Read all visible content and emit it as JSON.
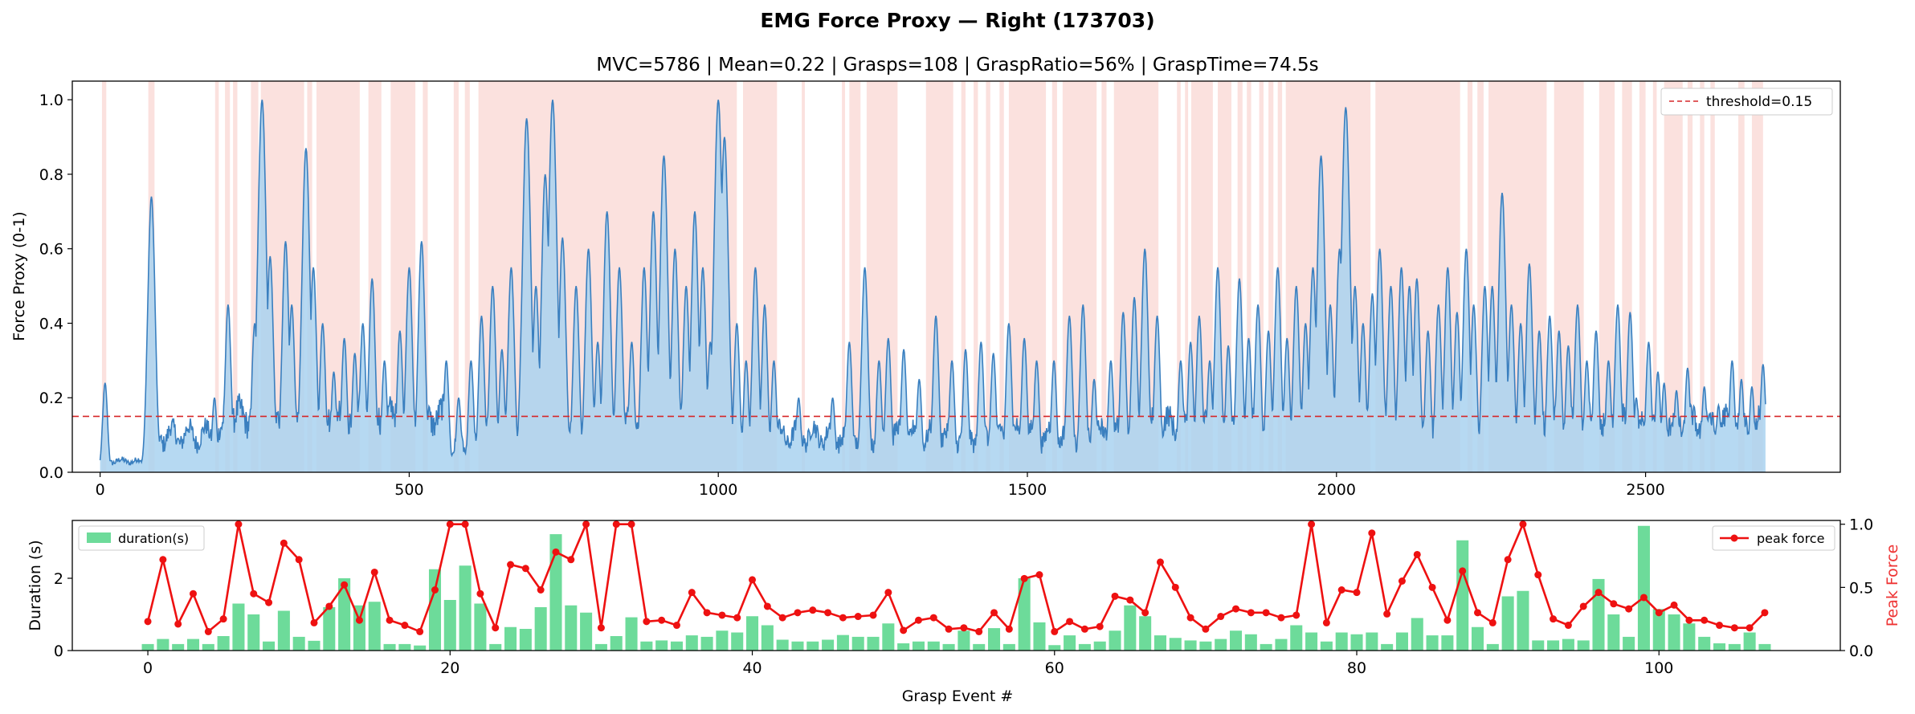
{
  "figure": {
    "suptitle": "EMG Force Proxy — Right (173703)"
  },
  "colors": {
    "signal_line": "#3a7fbf",
    "signal_fill": "#a9d2f0",
    "grasp_span": "#f6b8b0",
    "threshold": "#d62728",
    "bars": "#6ddb9a",
    "peak": "#ee1111",
    "peak_axis_label": "#ee3333"
  },
  "chart_data": [
    {
      "type": "area",
      "title": "MVC=5786 | Mean=0.22 | Grasps=108 | GraspRatio=56% | GraspTime=74.5s",
      "xlabel": "",
      "ylabel": "Force Proxy (0-1)",
      "xlim": [
        -45,
        2815
      ],
      "ylim": [
        0,
        1.05
      ],
      "xticks": [
        0,
        500,
        1000,
        1500,
        2000,
        2500
      ],
      "yticks": [
        0.0,
        0.2,
        0.4,
        0.6,
        0.8,
        1.0
      ],
      "threshold": {
        "value": 0.15,
        "label": "threshold=0.15"
      },
      "legend": "top-right",
      "grid": false,
      "n_samples": 2695,
      "baseline_segments": [
        {
          "x0": 0,
          "x1": 80,
          "level": 0.03
        },
        {
          "x0": 80,
          "x1": 200,
          "level": 0.1
        },
        {
          "x0": 200,
          "x1": 560,
          "level": 0.15
        },
        {
          "x0": 560,
          "x1": 620,
          "level": 0.07
        },
        {
          "x0": 620,
          "x1": 1000,
          "level": 0.13
        },
        {
          "x0": 1000,
          "x1": 1200,
          "level": 0.1
        },
        {
          "x0": 1200,
          "x1": 1500,
          "level": 0.1
        },
        {
          "x0": 1500,
          "x1": 1700,
          "level": 0.1
        },
        {
          "x0": 1700,
          "x1": 2695,
          "level": 0.13
        }
      ],
      "peaks": [
        [
          8,
          0.24
        ],
        [
          83,
          0.74
        ],
        [
          185,
          0.2
        ],
        [
          207,
          0.45
        ],
        [
          250,
          0.4
        ],
        [
          262,
          1.0
        ],
        [
          275,
          0.58
        ],
        [
          300,
          0.62
        ],
        [
          310,
          0.45
        ],
        [
          333,
          0.87
        ],
        [
          345,
          0.55
        ],
        [
          360,
          0.4
        ],
        [
          378,
          0.27
        ],
        [
          395,
          0.36
        ],
        [
          412,
          0.32
        ],
        [
          425,
          0.4
        ],
        [
          440,
          0.52
        ],
        [
          460,
          0.3
        ],
        [
          485,
          0.38
        ],
        [
          500,
          0.55
        ],
        [
          520,
          0.62
        ],
        [
          560,
          0.3
        ],
        [
          580,
          0.2
        ],
        [
          600,
          0.3
        ],
        [
          617,
          0.42
        ],
        [
          635,
          0.5
        ],
        [
          650,
          0.33
        ],
        [
          665,
          0.55
        ],
        [
          690,
          0.95
        ],
        [
          705,
          0.5
        ],
        [
          720,
          0.8
        ],
        [
          732,
          1.0
        ],
        [
          748,
          0.63
        ],
        [
          770,
          0.5
        ],
        [
          790,
          0.6
        ],
        [
          805,
          0.35
        ],
        [
          820,
          0.7
        ],
        [
          840,
          0.55
        ],
        [
          860,
          0.35
        ],
        [
          880,
          0.55
        ],
        [
          895,
          0.7
        ],
        [
          912,
          0.85
        ],
        [
          930,
          0.6
        ],
        [
          948,
          0.5
        ],
        [
          962,
          0.7
        ],
        [
          975,
          0.55
        ],
        [
          987,
          0.35
        ],
        [
          1000,
          1.0
        ],
        [
          1010,
          0.9
        ],
        [
          1030,
          0.4
        ],
        [
          1045,
          0.3
        ],
        [
          1060,
          0.55
        ],
        [
          1075,
          0.45
        ],
        [
          1090,
          0.3
        ],
        [
          1130,
          0.2
        ],
        [
          1185,
          0.2
        ],
        [
          1212,
          0.35
        ],
        [
          1237,
          0.55
        ],
        [
          1260,
          0.3
        ],
        [
          1275,
          0.36
        ],
        [
          1300,
          0.33
        ],
        [
          1325,
          0.25
        ],
        [
          1352,
          0.42
        ],
        [
          1378,
          0.3
        ],
        [
          1400,
          0.33
        ],
        [
          1425,
          0.35
        ],
        [
          1445,
          0.32
        ],
        [
          1470,
          0.4
        ],
        [
          1495,
          0.36
        ],
        [
          1515,
          0.3
        ],
        [
          1543,
          0.3
        ],
        [
          1568,
          0.42
        ],
        [
          1590,
          0.45
        ],
        [
          1608,
          0.25
        ],
        [
          1635,
          0.3
        ],
        [
          1655,
          0.43
        ],
        [
          1673,
          0.47
        ],
        [
          1690,
          0.6
        ],
        [
          1710,
          0.42
        ],
        [
          1748,
          0.3
        ],
        [
          1764,
          0.35
        ],
        [
          1778,
          0.42
        ],
        [
          1795,
          0.3
        ],
        [
          1808,
          0.55
        ],
        [
          1825,
          0.34
        ],
        [
          1843,
          0.52
        ],
        [
          1858,
          0.36
        ],
        [
          1873,
          0.45
        ],
        [
          1890,
          0.38
        ],
        [
          1905,
          0.55
        ],
        [
          1920,
          0.36
        ],
        [
          1935,
          0.5
        ],
        [
          1950,
          0.4
        ],
        [
          1962,
          0.55
        ],
        [
          1975,
          0.85
        ],
        [
          1990,
          0.45
        ],
        [
          2005,
          0.6
        ],
        [
          2015,
          0.98
        ],
        [
          2030,
          0.5
        ],
        [
          2043,
          0.4
        ],
        [
          2058,
          0.48
        ],
        [
          2070,
          0.6
        ],
        [
          2088,
          0.5
        ],
        [
          2105,
          0.55
        ],
        [
          2118,
          0.5
        ],
        [
          2130,
          0.52
        ],
        [
          2148,
          0.38
        ],
        [
          2165,
          0.45
        ],
        [
          2180,
          0.55
        ],
        [
          2195,
          0.43
        ],
        [
          2210,
          0.6
        ],
        [
          2222,
          0.45
        ],
        [
          2240,
          0.5
        ],
        [
          2252,
          0.5
        ],
        [
          2268,
          0.75
        ],
        [
          2283,
          0.45
        ],
        [
          2298,
          0.4
        ],
        [
          2312,
          0.56
        ],
        [
          2328,
          0.38
        ],
        [
          2345,
          0.42
        ],
        [
          2360,
          0.38
        ],
        [
          2375,
          0.34
        ],
        [
          2390,
          0.45
        ],
        [
          2405,
          0.3
        ],
        [
          2420,
          0.38
        ],
        [
          2440,
          0.3
        ],
        [
          2455,
          0.45
        ],
        [
          2475,
          0.43
        ],
        [
          2485,
          0.2
        ],
        [
          2505,
          0.35
        ],
        [
          2520,
          0.27
        ],
        [
          2530,
          0.24
        ],
        [
          2550,
          0.22
        ],
        [
          2568,
          0.28
        ],
        [
          2595,
          0.23
        ],
        [
          2618,
          0.18
        ],
        [
          2640,
          0.3
        ],
        [
          2655,
          0.25
        ],
        [
          2672,
          0.23
        ],
        [
          2690,
          0.29
        ]
      ],
      "grasp_spans": [
        [
          3,
          10
        ],
        [
          78,
          88
        ],
        [
          186,
          192
        ],
        [
          202,
          210
        ],
        [
          215,
          222
        ],
        [
          244,
          256
        ],
        [
          260,
          330
        ],
        [
          335,
          343
        ],
        [
          350,
          420
        ],
        [
          434,
          455
        ],
        [
          470,
          510
        ],
        [
          522,
          530
        ],
        [
          572,
          580
        ],
        [
          590,
          598
        ],
        [
          612,
          1030
        ],
        [
          1040,
          1095
        ],
        [
          1135,
          1140
        ],
        [
          1200,
          1205
        ],
        [
          1212,
          1230
        ],
        [
          1240,
          1290
        ],
        [
          1336,
          1380
        ],
        [
          1393,
          1400
        ],
        [
          1413,
          1420
        ],
        [
          1433,
          1440
        ],
        [
          1455,
          1462
        ],
        [
          1470,
          1530
        ],
        [
          1540,
          1548
        ],
        [
          1557,
          1612
        ],
        [
          1620,
          1628
        ],
        [
          1640,
          1712
        ],
        [
          1742,
          1748
        ],
        [
          1755,
          1760
        ],
        [
          1765,
          1800
        ],
        [
          1808,
          1830
        ],
        [
          1840,
          1848
        ],
        [
          1855,
          1862
        ],
        [
          1875,
          1882
        ],
        [
          1890,
          1898
        ],
        [
          1905,
          1912
        ],
        [
          1918,
          2055
        ],
        [
          2063,
          2200
        ],
        [
          2212,
          2220
        ],
        [
          2228,
          2238
        ],
        [
          2246,
          2340
        ],
        [
          2352,
          2400
        ],
        [
          2425,
          2450
        ],
        [
          2462,
          2478
        ],
        [
          2490,
          2500
        ],
        [
          2512,
          2518
        ],
        [
          2530,
          2560
        ],
        [
          2568,
          2576
        ],
        [
          2588,
          2595
        ],
        [
          2605,
          2612
        ],
        [
          2650,
          2660
        ],
        [
          2672,
          2690
        ]
      ]
    },
    {
      "type": "bar",
      "xlabel": "Grasp Event #",
      "ylabel": "Duration (s)",
      "ylabel_right": "Peak Force",
      "xlim": [
        -5,
        112
      ],
      "ylim": [
        0,
        3.6
      ],
      "ylim_right": [
        0,
        1.03
      ],
      "xticks": [
        0,
        20,
        40,
        60,
        80,
        100
      ],
      "yticks": [
        0,
        2
      ],
      "yticks_right": [
        0.0,
        0.5,
        1.0
      ],
      "series": [
        {
          "name": "duration(s)",
          "type": "bar",
          "legend": "top-left",
          "values": [
            0.18,
            0.32,
            0.18,
            0.32,
            0.18,
            0.4,
            1.3,
            1.0,
            0.25,
            1.1,
            0.38,
            0.27,
            1.2,
            2.0,
            1.25,
            1.35,
            0.18,
            0.18,
            0.14,
            2.25,
            1.4,
            2.35,
            1.3,
            0.18,
            0.65,
            0.6,
            1.2,
            3.22,
            1.25,
            1.05,
            0.18,
            0.4,
            0.92,
            0.25,
            0.28,
            0.25,
            0.42,
            0.38,
            0.55,
            0.5,
            0.95,
            0.7,
            0.3,
            0.25,
            0.25,
            0.3,
            0.43,
            0.38,
            0.38,
            0.75,
            0.2,
            0.25,
            0.25,
            0.18,
            0.55,
            0.18,
            0.62,
            0.18,
            2.0,
            0.78,
            0.15,
            0.42,
            0.18,
            0.25,
            0.55,
            1.25,
            0.95,
            0.42,
            0.35,
            0.28,
            0.25,
            0.32,
            0.55,
            0.45,
            0.18,
            0.32,
            0.7,
            0.5,
            0.25,
            0.5,
            0.45,
            0.5,
            0.18,
            0.5,
            0.9,
            0.42,
            0.42,
            3.05,
            0.65,
            0.18,
            1.5,
            1.65,
            0.28,
            0.28,
            0.32,
            0.28,
            1.98,
            1.0,
            0.38,
            3.45,
            1.15,
            1.0,
            0.75,
            0.38,
            0.2,
            0.18,
            0.5,
            0.18
          ]
        },
        {
          "name": "peak force",
          "type": "line",
          "axis": "right",
          "legend": "top-right",
          "values": [
            0.23,
            0.72,
            0.21,
            0.45,
            0.15,
            0.25,
            1.0,
            0.45,
            0.38,
            0.85,
            0.72,
            0.22,
            0.35,
            0.52,
            0.24,
            0.62,
            0.24,
            0.2,
            0.15,
            0.48,
            1.0,
            1.0,
            0.45,
            0.18,
            0.68,
            0.65,
            0.48,
            0.78,
            0.72,
            1.0,
            0.18,
            1.0,
            1.0,
            0.23,
            0.24,
            0.2,
            0.46,
            0.3,
            0.28,
            0.26,
            0.56,
            0.35,
            0.26,
            0.3,
            0.32,
            0.3,
            0.26,
            0.27,
            0.28,
            0.46,
            0.16,
            0.24,
            0.26,
            0.17,
            0.18,
            0.15,
            0.3,
            0.17,
            0.57,
            0.6,
            0.15,
            0.23,
            0.17,
            0.19,
            0.43,
            0.4,
            0.3,
            0.7,
            0.5,
            0.26,
            0.17,
            0.27,
            0.33,
            0.3,
            0.3,
            0.26,
            0.28,
            1.0,
            0.22,
            0.48,
            0.46,
            0.93,
            0.29,
            0.55,
            0.76,
            0.5,
            0.24,
            0.63,
            0.3,
            0.22,
            0.72,
            1.0,
            0.6,
            0.25,
            0.2,
            0.35,
            0.46,
            0.37,
            0.33,
            0.42,
            0.3,
            0.36,
            0.24,
            0.24,
            0.2,
            0.18,
            0.18,
            0.3
          ]
        }
      ]
    }
  ]
}
